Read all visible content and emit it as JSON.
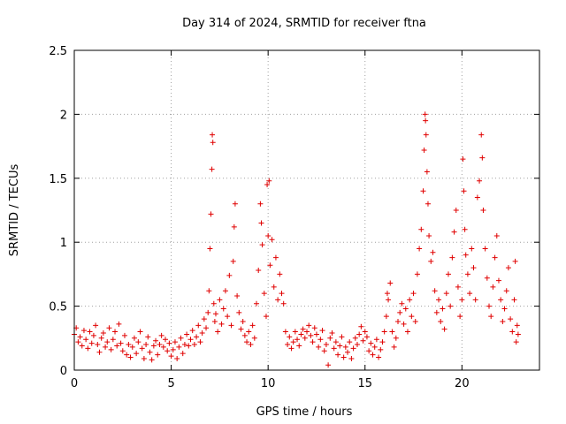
{
  "chart_data": {
    "type": "scatter",
    "title": "Day 314 of 2024, SRMTID for receiver ftna",
    "xlabel": "GPS time / hours",
    "ylabel": "SRMTID / TECUs",
    "xlim": [
      0,
      24
    ],
    "ylim": [
      0,
      2.5
    ],
    "xticks": [
      0,
      5,
      10,
      15,
      20
    ],
    "yticks": [
      0,
      0.5,
      1,
      1.5,
      2,
      2.5
    ],
    "xtick_labels": [
      "0",
      "5",
      "10",
      "15",
      "20"
    ],
    "ytick_labels": [
      "0",
      "0.5",
      "1",
      "1.5",
      "2",
      "2.5"
    ],
    "grid": true,
    "marker": "+",
    "color": "#e00000",
    "series": [
      {
        "name": "SRMTID",
        "points": [
          [
            0.0,
            0.28
          ],
          [
            0.1,
            0.33
          ],
          [
            0.2,
            0.22
          ],
          [
            0.3,
            0.26
          ],
          [
            0.4,
            0.19
          ],
          [
            0.5,
            0.31
          ],
          [
            0.6,
            0.24
          ],
          [
            0.7,
            0.17
          ],
          [
            0.8,
            0.3
          ],
          [
            0.9,
            0.21
          ],
          [
            1.0,
            0.27
          ],
          [
            1.1,
            0.35
          ],
          [
            1.2,
            0.2
          ],
          [
            1.3,
            0.14
          ],
          [
            1.4,
            0.25
          ],
          [
            1.5,
            0.29
          ],
          [
            1.6,
            0.18
          ],
          [
            1.7,
            0.22
          ],
          [
            1.8,
            0.33
          ],
          [
            1.9,
            0.16
          ],
          [
            2.0,
            0.24
          ],
          [
            2.1,
            0.3
          ],
          [
            2.2,
            0.19
          ],
          [
            2.3,
            0.36
          ],
          [
            2.4,
            0.21
          ],
          [
            2.5,
            0.15
          ],
          [
            2.6,
            0.27
          ],
          [
            2.7,
            0.12
          ],
          [
            2.8,
            0.2
          ],
          [
            2.9,
            0.1
          ],
          [
            3.0,
            0.18
          ],
          [
            3.1,
            0.25
          ],
          [
            3.2,
            0.13
          ],
          [
            3.3,
            0.22
          ],
          [
            3.4,
            0.3
          ],
          [
            3.5,
            0.17
          ],
          [
            3.6,
            0.09
          ],
          [
            3.7,
            0.2
          ],
          [
            3.8,
            0.26
          ],
          [
            3.9,
            0.14
          ],
          [
            4.0,
            0.08
          ],
          [
            4.1,
            0.19
          ],
          [
            4.2,
            0.23
          ],
          [
            4.3,
            0.12
          ],
          [
            4.4,
            0.2
          ],
          [
            4.5,
            0.27
          ],
          [
            4.6,
            0.18
          ],
          [
            4.7,
            0.24
          ],
          [
            4.8,
            0.15
          ],
          [
            4.9,
            0.21
          ],
          [
            5.0,
            0.11
          ],
          [
            5.1,
            0.16
          ],
          [
            5.2,
            0.22
          ],
          [
            5.3,
            0.09
          ],
          [
            5.4,
            0.18
          ],
          [
            5.5,
            0.25
          ],
          [
            5.6,
            0.13
          ],
          [
            5.7,
            0.2
          ],
          [
            5.8,
            0.28
          ],
          [
            5.9,
            0.19
          ],
          [
            6.0,
            0.24
          ],
          [
            6.1,
            0.31
          ],
          [
            6.2,
            0.2
          ],
          [
            6.3,
            0.26
          ],
          [
            6.4,
            0.35
          ],
          [
            6.5,
            0.22
          ],
          [
            6.6,
            0.29
          ],
          [
            6.7,
            0.4
          ],
          [
            6.8,
            0.33
          ],
          [
            6.9,
            0.45
          ],
          [
            6.95,
            0.62
          ],
          [
            7.0,
            0.95
          ],
          [
            7.05,
            1.22
          ],
          [
            7.1,
            1.57
          ],
          [
            7.12,
            1.84
          ],
          [
            7.15,
            1.78
          ],
          [
            7.2,
            0.52
          ],
          [
            7.25,
            0.38
          ],
          [
            7.3,
            0.44
          ],
          [
            7.4,
            0.3
          ],
          [
            7.5,
            0.55
          ],
          [
            7.6,
            0.36
          ],
          [
            7.7,
            0.48
          ],
          [
            7.8,
            0.62
          ],
          [
            7.9,
            0.42
          ],
          [
            8.0,
            0.74
          ],
          [
            8.1,
            0.35
          ],
          [
            8.2,
            0.85
          ],
          [
            8.25,
            1.12
          ],
          [
            8.3,
            1.3
          ],
          [
            8.4,
            0.58
          ],
          [
            8.5,
            0.45
          ],
          [
            8.6,
            0.32
          ],
          [
            8.7,
            0.38
          ],
          [
            8.8,
            0.27
          ],
          [
            8.9,
            0.22
          ],
          [
            9.0,
            0.3
          ],
          [
            9.1,
            0.2
          ],
          [
            9.2,
            0.35
          ],
          [
            9.3,
            0.25
          ],
          [
            9.4,
            0.52
          ],
          [
            9.5,
            0.78
          ],
          [
            9.6,
            1.3
          ],
          [
            9.65,
            1.15
          ],
          [
            9.7,
            0.98
          ],
          [
            9.8,
            0.6
          ],
          [
            9.9,
            0.42
          ],
          [
            9.95,
            1.45
          ],
          [
            10.0,
            1.05
          ],
          [
            10.05,
            1.48
          ],
          [
            10.1,
            0.82
          ],
          [
            10.2,
            1.02
          ],
          [
            10.3,
            0.65
          ],
          [
            10.4,
            0.88
          ],
          [
            10.5,
            0.55
          ],
          [
            10.6,
            0.75
          ],
          [
            10.7,
            0.6
          ],
          [
            10.8,
            0.52
          ],
          [
            10.9,
            0.3
          ],
          [
            11.0,
            0.2
          ],
          [
            11.1,
            0.26
          ],
          [
            11.2,
            0.17
          ],
          [
            11.3,
            0.22
          ],
          [
            11.4,
            0.3
          ],
          [
            11.5,
            0.24
          ],
          [
            11.6,
            0.19
          ],
          [
            11.7,
            0.28
          ],
          [
            11.8,
            0.32
          ],
          [
            11.9,
            0.25
          ],
          [
            12.0,
            0.3
          ],
          [
            12.1,
            0.35
          ],
          [
            12.2,
            0.27
          ],
          [
            12.3,
            0.22
          ],
          [
            12.4,
            0.33
          ],
          [
            12.5,
            0.28
          ],
          [
            12.6,
            0.18
          ],
          [
            12.7,
            0.24
          ],
          [
            12.8,
            0.31
          ],
          [
            12.9,
            0.15
          ],
          [
            13.0,
            0.2
          ],
          [
            13.1,
            0.04
          ],
          [
            13.2,
            0.25
          ],
          [
            13.3,
            0.29
          ],
          [
            13.4,
            0.17
          ],
          [
            13.5,
            0.22
          ],
          [
            13.6,
            0.12
          ],
          [
            13.7,
            0.19
          ],
          [
            13.8,
            0.26
          ],
          [
            13.9,
            0.1
          ],
          [
            14.0,
            0.18
          ],
          [
            14.1,
            0.14
          ],
          [
            14.2,
            0.22
          ],
          [
            14.3,
            0.09
          ],
          [
            14.4,
            0.17
          ],
          [
            14.5,
            0.25
          ],
          [
            14.6,
            0.2
          ],
          [
            14.7,
            0.28
          ],
          [
            14.8,
            0.34
          ],
          [
            14.9,
            0.23
          ],
          [
            15.0,
            0.3
          ],
          [
            15.1,
            0.26
          ],
          [
            15.2,
            0.15
          ],
          [
            15.3,
            0.21
          ],
          [
            15.4,
            0.12
          ],
          [
            15.5,
            0.18
          ],
          [
            15.6,
            0.24
          ],
          [
            15.7,
            0.1
          ],
          [
            15.8,
            0.16
          ],
          [
            15.9,
            0.22
          ],
          [
            16.0,
            0.3
          ],
          [
            16.1,
            0.42
          ],
          [
            16.15,
            0.6
          ],
          [
            16.2,
            0.55
          ],
          [
            16.3,
            0.68
          ],
          [
            16.4,
            0.3
          ],
          [
            16.5,
            0.18
          ],
          [
            16.6,
            0.25
          ],
          [
            16.7,
            0.38
          ],
          [
            16.8,
            0.45
          ],
          [
            16.9,
            0.52
          ],
          [
            17.0,
            0.36
          ],
          [
            17.1,
            0.48
          ],
          [
            17.2,
            0.3
          ],
          [
            17.3,
            0.55
          ],
          [
            17.4,
            0.42
          ],
          [
            17.5,
            0.6
          ],
          [
            17.6,
            0.38
          ],
          [
            17.7,
            0.75
          ],
          [
            17.8,
            0.95
          ],
          [
            17.9,
            1.1
          ],
          [
            18.0,
            1.4
          ],
          [
            18.05,
            1.72
          ],
          [
            18.1,
            2.0
          ],
          [
            18.12,
            1.95
          ],
          [
            18.15,
            1.84
          ],
          [
            18.2,
            1.55
          ],
          [
            18.25,
            1.3
          ],
          [
            18.3,
            1.05
          ],
          [
            18.4,
            0.85
          ],
          [
            18.5,
            0.92
          ],
          [
            18.6,
            0.62
          ],
          [
            18.7,
            0.45
          ],
          [
            18.8,
            0.55
          ],
          [
            18.9,
            0.38
          ],
          [
            19.0,
            0.48
          ],
          [
            19.1,
            0.32
          ],
          [
            19.2,
            0.6
          ],
          [
            19.3,
            0.75
          ],
          [
            19.4,
            0.5
          ],
          [
            19.5,
            0.88
          ],
          [
            19.6,
            1.08
          ],
          [
            19.7,
            1.25
          ],
          [
            19.8,
            0.65
          ],
          [
            19.9,
            0.42
          ],
          [
            20.0,
            0.55
          ],
          [
            20.05,
            1.65
          ],
          [
            20.1,
            1.4
          ],
          [
            20.15,
            1.1
          ],
          [
            20.2,
            0.9
          ],
          [
            20.3,
            0.75
          ],
          [
            20.4,
            0.6
          ],
          [
            20.5,
            0.95
          ],
          [
            20.6,
            0.8
          ],
          [
            20.7,
            0.55
          ],
          [
            20.8,
            1.35
          ],
          [
            20.9,
            1.48
          ],
          [
            21.0,
            1.84
          ],
          [
            21.05,
            1.66
          ],
          [
            21.1,
            1.25
          ],
          [
            21.2,
            0.95
          ],
          [
            21.3,
            0.72
          ],
          [
            21.4,
            0.5
          ],
          [
            21.5,
            0.42
          ],
          [
            21.6,
            0.65
          ],
          [
            21.7,
            0.88
          ],
          [
            21.8,
            1.05
          ],
          [
            21.9,
            0.7
          ],
          [
            22.0,
            0.55
          ],
          [
            22.1,
            0.38
          ],
          [
            22.2,
            0.48
          ],
          [
            22.3,
            0.62
          ],
          [
            22.4,
            0.8
          ],
          [
            22.5,
            0.4
          ],
          [
            22.6,
            0.3
          ],
          [
            22.7,
            0.55
          ],
          [
            22.75,
            0.85
          ],
          [
            22.8,
            0.22
          ],
          [
            22.85,
            0.35
          ],
          [
            22.9,
            0.28
          ]
        ]
      }
    ]
  }
}
